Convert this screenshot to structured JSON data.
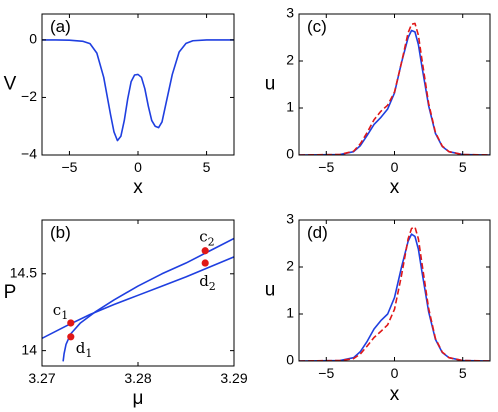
{
  "chart_data": [
    {
      "id": "a",
      "type": "line",
      "panel_label": "(a)",
      "xlabel": "x",
      "ylabel": "V",
      "xlim": [
        -7,
        7
      ],
      "ylim": [
        -4,
        0.9
      ],
      "xticks": [
        -5,
        0,
        5
      ],
      "yticks": [
        0,
        -2,
        -4
      ],
      "xtick_labels": [
        "−5",
        "0",
        "5"
      ],
      "ytick_labels": [
        "0",
        "−2",
        "−4"
      ],
      "grid": false,
      "series": [
        {
          "color": "#1f3fe0",
          "dash": "solid",
          "x": [
            -7,
            -6,
            -5,
            -4,
            -3.5,
            -3,
            -2.5,
            -2,
            -1.75,
            -1.5,
            -1.25,
            -1,
            -0.75,
            -0.5,
            -0.25,
            0,
            0.25,
            0.5,
            0.75,
            1,
            1.25,
            1.5,
            1.75,
            2,
            2.5,
            3,
            3.5,
            4,
            5,
            6,
            7
          ],
          "y": [
            0,
            0,
            -0.01,
            -0.05,
            -0.13,
            -0.46,
            -1.3,
            -2.6,
            -3.2,
            -3.5,
            -3.35,
            -2.8,
            -2.05,
            -1.45,
            -1.22,
            -1.2,
            -1.3,
            -1.7,
            -2.3,
            -2.8,
            -3.0,
            -3.05,
            -2.85,
            -2.3,
            -1.2,
            -0.42,
            -0.12,
            -0.03,
            0,
            0,
            0
          ]
        }
      ]
    },
    {
      "id": "b",
      "type": "line",
      "panel_label": "(b)",
      "xlabel": "μ",
      "ylabel": "P",
      "xlim": [
        3.27,
        3.29
      ],
      "ylim": [
        13.9,
        14.85
      ],
      "xticks": [
        3.27,
        3.28,
        3.29
      ],
      "yticks": [
        14,
        14.5
      ],
      "xtick_labels": [
        "3.27",
        "3.28",
        "3.29"
      ],
      "ytick_labels": [
        "14",
        "14.5"
      ],
      "grid": false,
      "series": [
        {
          "color": "#1f3fe0",
          "dash": "solid",
          "x": [
            3.27,
            3.2725,
            3.275,
            3.2775,
            3.28,
            3.2825,
            3.285,
            3.2875,
            3.29
          ],
          "y": [
            14.08,
            14.16,
            14.235,
            14.3,
            14.36,
            14.42,
            14.48,
            14.545,
            14.61
          ]
        },
        {
          "color": "#1f3fe0",
          "dash": "solid",
          "x": [
            3.2722,
            3.2723,
            3.2725,
            3.273,
            3.274,
            3.2755,
            3.2775,
            3.28,
            3.2825,
            3.285,
            3.2875,
            3.29
          ],
          "y": [
            13.93,
            13.98,
            14.04,
            14.11,
            14.18,
            14.25,
            14.33,
            14.42,
            14.5,
            14.57,
            14.65,
            14.73
          ]
        }
      ],
      "points": [
        {
          "label": "c",
          "sub": "1",
          "x": 3.273,
          "y": 14.18,
          "color": "#e01818",
          "label_pos": "above-left"
        },
        {
          "label": "d",
          "sub": "1",
          "x": 3.273,
          "y": 14.09,
          "color": "#e01818",
          "label_pos": "below-right"
        },
        {
          "label": "c",
          "sub": "2",
          "x": 3.287,
          "y": 14.65,
          "color": "#e01818",
          "label_pos": "above"
        },
        {
          "label": "d",
          "sub": "2",
          "x": 3.287,
          "y": 14.57,
          "color": "#e01818",
          "label_pos": "below"
        }
      ]
    },
    {
      "id": "c",
      "type": "line",
      "panel_label": "(c)",
      "xlabel": "x",
      "ylabel": "u",
      "xlim": [
        -7,
        7
      ],
      "ylim": [
        0,
        3
      ],
      "xticks": [
        -5,
        0,
        5
      ],
      "yticks": [
        0,
        1,
        2,
        3
      ],
      "xtick_labels": [
        "−5",
        "0",
        "5"
      ],
      "ytick_labels": [
        "0",
        "1",
        "2",
        "3"
      ],
      "grid": false,
      "series": [
        {
          "color": "#1f3fe0",
          "dash": "solid",
          "x": [
            -7,
            -4,
            -3,
            -2.5,
            -2,
            -1.5,
            -1,
            -0.5,
            0,
            0.5,
            1,
            1.25,
            1.5,
            1.75,
            2,
            2.5,
            3,
            3.5,
            4,
            5,
            7
          ],
          "y": [
            0,
            0.01,
            0.07,
            0.2,
            0.42,
            0.65,
            0.8,
            0.98,
            1.32,
            1.95,
            2.5,
            2.65,
            2.62,
            2.35,
            1.9,
            1.05,
            0.46,
            0.18,
            0.07,
            0.01,
            0
          ]
        },
        {
          "color": "#e01818",
          "dash": "dashed",
          "x": [
            -7,
            -4,
            -3,
            -2.5,
            -2,
            -1.5,
            -1,
            -0.5,
            0,
            0.5,
            1,
            1.25,
            1.5,
            1.75,
            2,
            2.5,
            3,
            3.5,
            4,
            5,
            7
          ],
          "y": [
            0,
            0.01,
            0.08,
            0.24,
            0.48,
            0.75,
            0.93,
            1.06,
            1.34,
            1.95,
            2.6,
            2.78,
            2.8,
            2.55,
            2.05,
            1.1,
            0.48,
            0.19,
            0.07,
            0.01,
            0
          ]
        }
      ]
    },
    {
      "id": "d",
      "type": "line",
      "panel_label": "(d)",
      "xlabel": "x",
      "ylabel": "u",
      "xlim": [
        -7,
        7
      ],
      "ylim": [
        0,
        3
      ],
      "xticks": [
        -5,
        0,
        5
      ],
      "yticks": [
        0,
        1,
        2,
        3
      ],
      "xtick_labels": [
        "−5",
        "0",
        "5"
      ],
      "ytick_labels": [
        "0",
        "1",
        "2",
        "3"
      ],
      "grid": false,
      "series": [
        {
          "color": "#1f3fe0",
          "dash": "solid",
          "x": [
            -7,
            -4,
            -3,
            -2.5,
            -2,
            -1.5,
            -1,
            -0.5,
            0,
            0.5,
            1,
            1.25,
            1.5,
            1.75,
            2,
            2.5,
            3,
            3.5,
            4,
            5,
            7
          ],
          "y": [
            0,
            0.01,
            0.07,
            0.2,
            0.42,
            0.68,
            0.86,
            1.0,
            1.35,
            1.98,
            2.55,
            2.7,
            2.65,
            2.38,
            1.92,
            1.05,
            0.46,
            0.18,
            0.07,
            0.01,
            0
          ]
        },
        {
          "color": "#e01818",
          "dash": "dashed",
          "x": [
            -7,
            -4,
            -3,
            -2.5,
            -2,
            -1.5,
            -1,
            -0.5,
            0,
            0.5,
            1,
            1.25,
            1.5,
            1.75,
            2,
            2.5,
            3,
            3.5,
            4,
            5,
            7
          ],
          "y": [
            0,
            0.01,
            0.05,
            0.15,
            0.32,
            0.5,
            0.63,
            0.77,
            1.1,
            1.8,
            2.6,
            2.82,
            2.85,
            2.6,
            2.1,
            1.12,
            0.48,
            0.19,
            0.07,
            0.01,
            0
          ]
        }
      ]
    }
  ]
}
